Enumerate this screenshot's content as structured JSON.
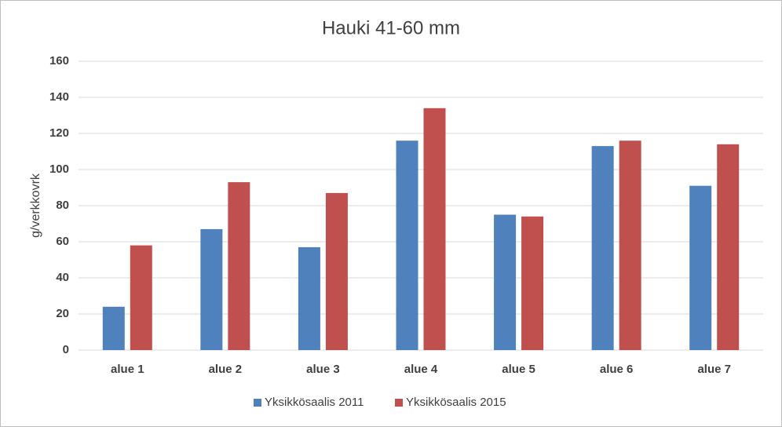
{
  "chart_data": {
    "type": "bar",
    "title": "Hauki 41-60 mm",
    "y_label": "g/verkkovrk",
    "categories": [
      "alue 1",
      "alue 2",
      "alue 3",
      "alue 4",
      "alue 5",
      "alue 6",
      "alue 7"
    ],
    "series": [
      {
        "name": "Yksikkösaalis 2011",
        "color": "#4f81bd",
        "values": [
          24,
          67,
          57,
          116,
          75,
          113,
          91
        ]
      },
      {
        "name": "Yksikkösaalis 2015",
        "color": "#c0504d",
        "values": [
          58,
          93,
          87,
          134,
          74,
          116,
          114
        ]
      }
    ],
    "ylim": [
      0,
      160
    ],
    "yticks": [
      0,
      20,
      40,
      60,
      80,
      100,
      120,
      140,
      160
    ],
    "grid": true,
    "legend": "bottom"
  }
}
